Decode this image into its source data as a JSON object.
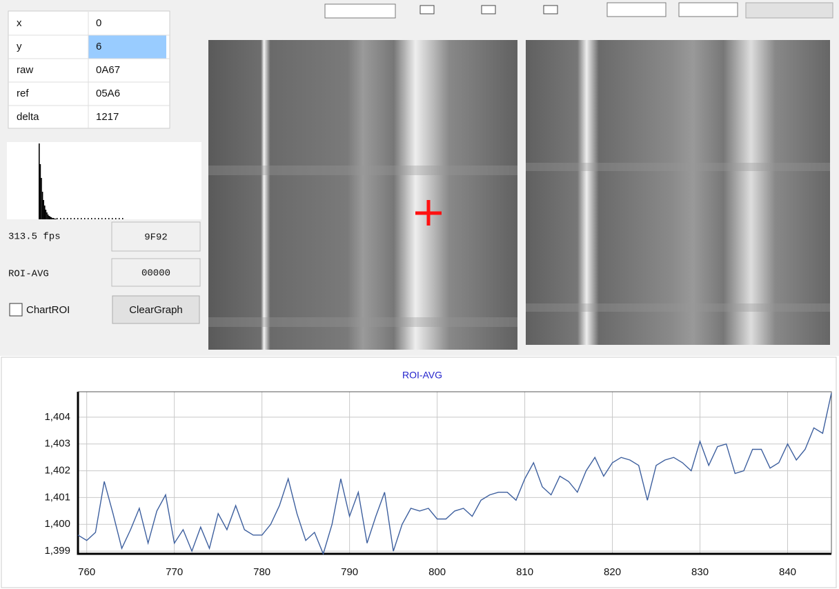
{
  "info_table": {
    "rows": [
      [
        "x",
        "0"
      ],
      [
        "y",
        "6"
      ],
      [
        "raw",
        "0A67"
      ],
      [
        "ref",
        "05A6"
      ],
      [
        "delta",
        "1217"
      ]
    ]
  },
  "status": {
    "fps": "313.5 fps",
    "fps_field": "9F92",
    "roi_label": "ROI-AVG",
    "roi_field": "00000",
    "checkbox": "ChartROI",
    "button": "ClearGraph"
  },
  "chart_data": {
    "type": "line",
    "title": "ROI-AVG",
    "color": "#3d5f9e",
    "grid": true,
    "x": [
      759,
      760,
      761,
      762,
      763,
      764,
      765,
      766,
      767,
      768,
      769,
      770,
      771,
      772,
      773,
      774,
      775,
      776,
      777,
      778,
      779,
      780,
      781,
      782,
      783,
      784,
      785,
      786,
      787,
      788,
      789,
      790,
      791,
      792,
      793,
      794,
      795,
      796,
      797,
      798,
      799,
      800,
      801,
      802,
      803,
      804,
      805,
      806,
      807,
      808,
      809,
      810,
      811,
      812,
      813,
      814,
      815,
      816,
      817,
      818,
      819,
      820,
      821,
      822,
      823,
      824,
      825,
      826,
      827,
      828,
      829,
      830,
      831,
      832,
      833,
      834,
      835,
      836,
      837,
      838,
      839,
      840,
      841,
      842,
      843,
      844,
      845
    ],
    "values": [
      1399.6,
      1399.4,
      1399.7,
      1401.6,
      1400.4,
      1399.1,
      1399.8,
      1400.6,
      1399.3,
      1400.5,
      1401.1,
      1399.3,
      1399.8,
      1399.0,
      1399.9,
      1399.1,
      1400.4,
      1399.8,
      1400.7,
      1399.8,
      1399.6,
      1399.6,
      1400.0,
      1400.7,
      1401.7,
      1400.4,
      1399.4,
      1399.7,
      1398.9,
      1400.0,
      1401.7,
      1400.3,
      1401.2,
      1399.3,
      1400.3,
      1401.2,
      1399.0,
      1400.0,
      1400.6,
      1400.5,
      1400.6,
      1400.2,
      1400.2,
      1400.5,
      1400.6,
      1400.3,
      1400.9,
      1401.1,
      1401.2,
      1401.2,
      1400.9,
      1401.7,
      1402.3,
      1401.4,
      1401.1,
      1401.8,
      1401.6,
      1401.2,
      1402.0,
      1402.5,
      1401.8,
      1402.3,
      1402.5,
      1402.4,
      1402.2,
      1400.9,
      1402.2,
      1402.4,
      1402.5,
      1402.3,
      1402.0,
      1403.1,
      1402.2,
      1402.9,
      1403.0,
      1401.9,
      1402.0,
      1402.8,
      1402.8,
      1402.1,
      1402.3,
      1403.0,
      1402.4,
      1402.8,
      1403.6,
      1403.4,
      1404.9
    ],
    "xlim": [
      759,
      845
    ],
    "ylim": [
      1398.9,
      1404.95
    ],
    "xticks": [
      760,
      770,
      780,
      790,
      800,
      810,
      820,
      830,
      840
    ],
    "yticks": [
      {
        "value": 1399,
        "label": "1,399"
      },
      {
        "value": 1400,
        "label": "1,400"
      },
      {
        "value": 1401,
        "label": "1,401"
      },
      {
        "value": 1402,
        "label": "1,402"
      },
      {
        "value": 1403,
        "label": "1,403"
      },
      {
        "value": 1404,
        "label": "1,404"
      }
    ]
  }
}
